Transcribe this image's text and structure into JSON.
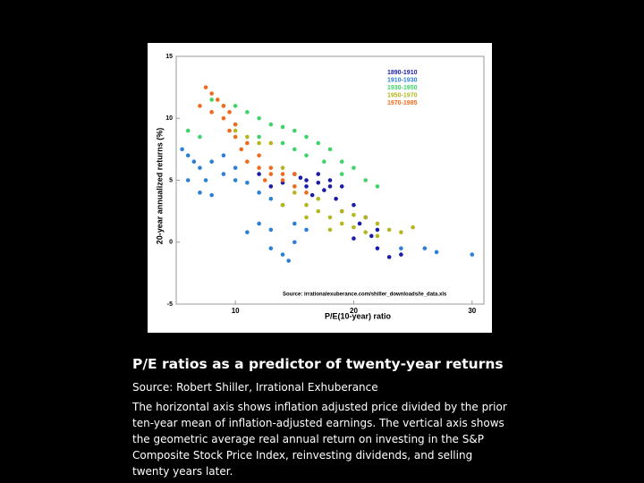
{
  "chart_data": {
    "type": "scatter",
    "xlabel": "P/E(10-year) ratio",
    "ylabel": "20-year annualized returns (%)",
    "annotation": "Source: irrationalexuberance.com/shiller_downloads/ie_data.xls",
    "xlim": [
      5,
      31
    ],
    "ylim": [
      -5,
      15
    ],
    "xticks": [
      10,
      20,
      30
    ],
    "yticks": [
      -5,
      0,
      5,
      10,
      15
    ],
    "legend": "upper right",
    "series": [
      {
        "name": "1890-1910",
        "color": "#1c1ca8",
        "x": [
          15,
          16,
          17,
          18,
          19,
          17.5,
          16.5,
          18.5,
          20,
          21,
          22,
          21.5,
          22,
          23,
          24,
          12,
          13,
          14,
          15.5,
          19,
          20.5,
          18,
          16,
          17,
          20
        ],
        "values": [
          5.5,
          5,
          4.8,
          5,
          4.5,
          4.2,
          3.8,
          3.5,
          3,
          2,
          1,
          0.5,
          -0.5,
          -1.2,
          -1,
          5.5,
          4.5,
          4.8,
          5.2,
          2.5,
          1.5,
          4.5,
          4.5,
          5.5,
          0.3
        ]
      },
      {
        "name": "1910-1930",
        "color": "#2b80d6",
        "x": [
          5.5,
          6,
          6.5,
          7,
          6,
          7,
          8,
          7.5,
          9,
          10,
          11,
          12,
          13,
          14,
          12,
          11,
          13,
          14,
          15,
          16,
          24,
          26,
          27,
          30,
          10,
          8,
          9,
          13,
          15,
          14.5
        ],
        "values": [
          7.5,
          7,
          6.5,
          6,
          5,
          4,
          3.8,
          5,
          5.5,
          5,
          4.8,
          4,
          3.5,
          3,
          1.5,
          0.8,
          -0.5,
          -1,
          1.5,
          1,
          -0.5,
          -0.5,
          -0.8,
          -1,
          6,
          6.5,
          7,
          1,
          0,
          -1.5
        ]
      },
      {
        "name": "1930-1950",
        "color": "#3fd46a",
        "x": [
          8,
          9,
          10,
          11,
          12,
          13,
          14,
          15,
          16,
          17,
          18,
          19,
          20,
          21,
          22,
          6,
          7,
          12,
          14,
          16,
          17.5,
          19,
          10,
          15
        ],
        "values": [
          11.5,
          11,
          11,
          10.5,
          10,
          9.5,
          9.3,
          9,
          8.5,
          8,
          7.5,
          6.5,
          6,
          5,
          4.5,
          9,
          8.5,
          8.5,
          8,
          7,
          6.5,
          5.5,
          9.5,
          7.5
        ]
      },
      {
        "name": "1950-1970",
        "color": "#b5b51e",
        "x": [
          10,
          11,
          12,
          13,
          14,
          15,
          16,
          17,
          18,
          19,
          20,
          21,
          22,
          23,
          24,
          25,
          16,
          18,
          20,
          22,
          14,
          17,
          19,
          21
        ],
        "values": [
          9,
          8.5,
          8,
          8,
          6,
          4,
          3,
          2.5,
          2,
          2.5,
          2.2,
          2,
          1.5,
          1,
          0.8,
          1.2,
          2,
          1,
          1.2,
          0.5,
          3,
          3.5,
          1.5,
          0.8
        ]
      },
      {
        "name": "1970-1985",
        "color": "#f06a1e",
        "x": [
          7,
          7.5,
          8,
          8.5,
          9,
          9,
          9.5,
          10,
          10.5,
          11,
          12,
          13,
          14,
          15,
          16,
          8,
          9.5,
          10,
          11,
          12,
          13,
          14,
          12.5,
          15
        ],
        "values": [
          11,
          12.5,
          12,
          11.5,
          11,
          10,
          9,
          8.5,
          7.5,
          6.5,
          6,
          5.5,
          5,
          4.5,
          4,
          10.5,
          10.5,
          9.5,
          8,
          7,
          6,
          5.5,
          5,
          5.5
        ]
      }
    ],
    "caption_title": "P/E ratios as a predictor of twenty-year returns",
    "caption_source": "Source: Robert Shiller, Irrational Exhuberance",
    "caption_text": "The horizontal axis shows inflation adjusted price divided by the prior ten-year mean of inflation-adjusted earnings. The vertical axis shows the geometric average real annual return on investing in the S&P Composite Stock Price Index, reinvesting dividends, and selling twenty years later."
  }
}
